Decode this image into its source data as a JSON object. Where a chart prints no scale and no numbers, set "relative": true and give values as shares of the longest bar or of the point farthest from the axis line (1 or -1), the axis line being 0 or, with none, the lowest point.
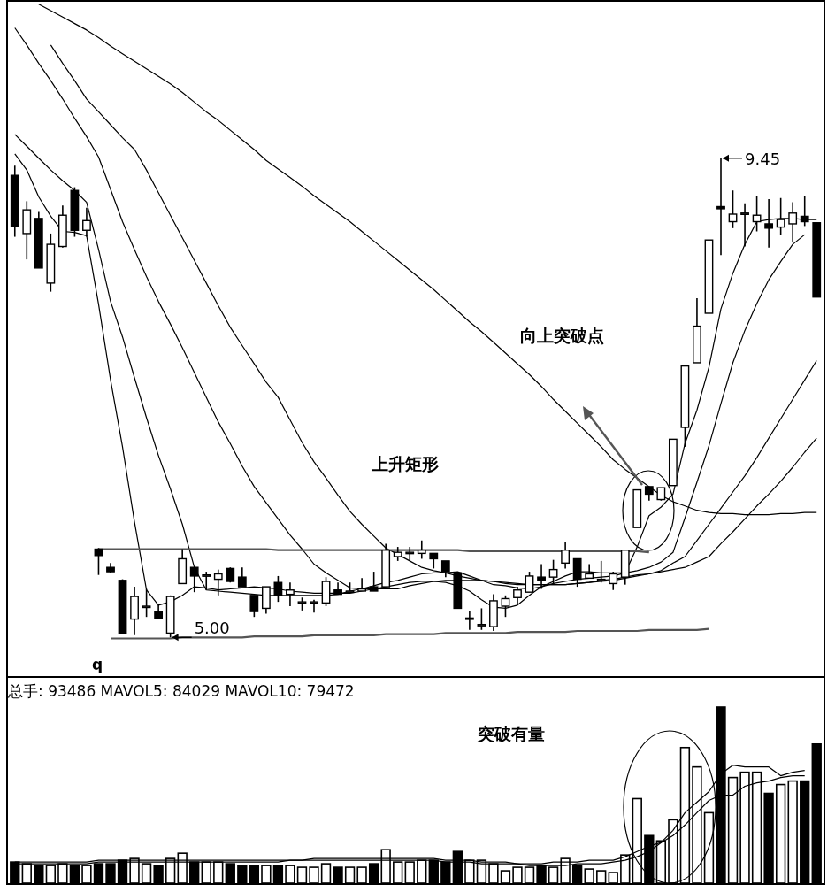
{
  "chart_data": [
    {
      "type": "candlestick",
      "categories": [
        null,
        null,
        null,
        null,
        null,
        null,
        null,
        null,
        null,
        null,
        null,
        null,
        null,
        null,
        null,
        null,
        null,
        null,
        null,
        null,
        null,
        null,
        null,
        null,
        null,
        null,
        null,
        null,
        null,
        null,
        null,
        null,
        null,
        null,
        null,
        null,
        null,
        null,
        null,
        null,
        null,
        null,
        null,
        null,
        null,
        null,
        null,
        null,
        null,
        null,
        null,
        null,
        null,
        null,
        null,
        null,
        null,
        null,
        null,
        null,
        null,
        null,
        null,
        null,
        null,
        null,
        null,
        null
      ],
      "ohlc": [
        [
          9.29,
          9.38,
          8.72,
          8.82
        ],
        [
          8.75,
          9.05,
          8.51,
          8.97
        ],
        [
          8.89,
          8.95,
          8.43,
          8.43
        ],
        [
          8.29,
          8.75,
          8.21,
          8.65
        ],
        [
          8.63,
          9.01,
          8.62,
          8.92
        ],
        [
          9.15,
          9.18,
          8.72,
          8.78
        ],
        [
          8.78,
          8.99,
          8.72,
          8.87
        ],
        [
          5.82,
          5.83,
          5.58,
          5.76
        ],
        [
          5.65,
          5.69,
          5.6,
          5.61
        ],
        [
          5.53,
          5.54,
          5.03,
          5.04
        ],
        [
          5.17,
          5.47,
          5.02,
          5.38
        ],
        [
          5.28,
          5.45,
          5.19,
          5.29
        ],
        [
          5.24,
          5.3,
          5.17,
          5.18
        ],
        [
          5.04,
          5.39,
          5.0,
          5.38
        ],
        [
          5.5,
          5.82,
          5.5,
          5.73
        ],
        [
          5.65,
          5.65,
          5.42,
          5.57
        ],
        [
          5.57,
          5.61,
          5.44,
          5.58
        ],
        [
          5.54,
          5.63,
          5.39,
          5.59
        ],
        [
          5.64,
          5.65,
          5.51,
          5.52
        ],
        [
          5.56,
          5.65,
          5.47,
          5.47
        ],
        [
          5.39,
          5.39,
          5.19,
          5.24
        ],
        [
          5.27,
          5.47,
          5.22,
          5.47
        ],
        [
          5.51,
          5.57,
          5.33,
          5.39
        ],
        [
          5.4,
          5.51,
          5.29,
          5.44
        ],
        [
          5.32,
          5.37,
          5.25,
          5.33
        ],
        [
          5.32,
          5.35,
          5.23,
          5.33
        ],
        [
          5.32,
          5.56,
          5.29,
          5.52
        ],
        [
          5.44,
          5.51,
          5.4,
          5.4
        ],
        [
          5.42,
          5.51,
          5.42,
          5.43
        ],
        [
          5.43,
          5.55,
          5.43,
          5.45
        ],
        [
          5.47,
          5.61,
          5.43,
          5.43
        ],
        [
          5.47,
          5.87,
          5.47,
          5.81
        ],
        [
          5.75,
          5.84,
          5.71,
          5.79
        ],
        [
          5.78,
          5.84,
          5.71,
          5.79
        ],
        [
          5.78,
          5.9,
          5.73,
          5.81
        ],
        [
          5.78,
          5.78,
          5.64,
          5.73
        ],
        [
          5.71,
          5.71,
          5.56,
          5.61
        ],
        [
          5.6,
          5.6,
          5.27,
          5.27
        ],
        [
          5.17,
          5.24,
          5.07,
          5.18
        ],
        [
          5.11,
          5.27,
          5.07,
          5.12
        ],
        [
          5.1,
          5.4,
          5.06,
          5.34
        ],
        [
          5.29,
          5.39,
          5.19,
          5.36
        ],
        [
          5.37,
          5.47,
          5.31,
          5.44
        ],
        [
          5.42,
          5.61,
          5.42,
          5.57
        ],
        [
          5.56,
          5.68,
          5.45,
          5.53
        ],
        [
          5.56,
          5.72,
          5.49,
          5.63
        ],
        [
          5.69,
          5.89,
          5.64,
          5.81
        ],
        [
          5.73,
          5.73,
          5.47,
          5.54
        ],
        [
          5.55,
          5.68,
          5.55,
          5.59
        ],
        [
          5.53,
          5.71,
          5.51,
          5.54
        ],
        [
          5.5,
          5.61,
          5.44,
          5.59
        ],
        [
          5.56,
          5.81,
          5.49,
          5.81
        ],
        [
          6.02,
          6.37,
          6.02,
          6.37
        ],
        [
          6.4,
          6.4,
          6.27,
          6.33
        ],
        [
          6.28,
          6.39,
          6.27,
          6.39
        ],
        [
          6.41,
          6.84,
          6.41,
          6.84
        ],
        [
          6.95,
          7.52,
          6.77,
          7.52
        ],
        [
          7.55,
          8.15,
          7.55,
          7.89
        ],
        [
          8.01,
          8.69,
          8.01,
          8.69
        ],
        [
          9.0,
          9.45,
          8.55,
          8.98
        ],
        [
          8.86,
          9.15,
          8.8,
          8.93
        ],
        [
          8.94,
          9.03,
          8.63,
          8.94
        ],
        [
          8.86,
          9.1,
          8.77,
          8.92
        ],
        [
          8.84,
          9.07,
          8.62,
          8.8
        ],
        [
          8.81,
          9.08,
          8.74,
          8.88
        ],
        [
          8.84,
          9.04,
          8.67,
          8.94
        ],
        [
          8.91,
          9.1,
          8.82,
          8.86
        ],
        [
          8.85,
          8.85,
          8.16,
          8.16
        ]
      ],
      "series": [
        {
          "type": "line",
          "color": "#000000",
          "values": [
            9.49,
            9.34,
            9.09,
            8.91,
            8.77,
            8.76,
            8.73,
            8.09,
            7.39,
            6.77,
            6.07,
            5.44,
            5.3,
            5.33,
            5.39,
            5.47,
            5.46,
            5.44,
            5.45,
            5.46,
            5.47,
            5.46,
            5.45,
            5.43,
            5.42,
            5.41,
            5.41,
            5.41,
            5.41,
            5.43,
            5.45,
            5.47,
            5.49,
            5.51,
            5.52,
            5.52,
            5.51,
            5.48,
            5.43,
            5.35,
            5.28,
            5.27,
            5.3,
            5.39,
            5.47,
            5.52,
            5.57,
            5.61,
            5.61,
            5.6,
            5.6,
            5.6,
            5.84,
            6.13,
            6.21,
            6.33,
            6.8,
            7.11,
            7.51,
            8.05,
            8.38,
            8.65,
            8.86,
            8.88,
            8.89,
            8.89,
            8.88,
            8.88
          ]
        },
        {
          "type": "line",
          "color": "#000000",
          "values": [
            9.67,
            9.56,
            9.45,
            9.34,
            9.24,
            9.15,
            9.04,
            8.6,
            8.12,
            7.79,
            7.41,
            7.04,
            6.69,
            6.38,
            6.05,
            5.65,
            5.44,
            5.43,
            5.42,
            5.41,
            5.4,
            5.39,
            5.39,
            5.39,
            5.39,
            5.39,
            5.39,
            5.4,
            5.43,
            5.45,
            5.48,
            5.51,
            5.53,
            5.56,
            5.59,
            5.6,
            5.6,
            5.61,
            5.57,
            5.53,
            5.49,
            5.48,
            5.46,
            5.45,
            5.47,
            5.5,
            5.52,
            5.54,
            5.55,
            5.56,
            5.57,
            5.6,
            5.62,
            5.65,
            5.7,
            5.79,
            6.11,
            6.44,
            6.78,
            7.17,
            7.55,
            7.85,
            8.1,
            8.32,
            8.49,
            8.65,
            8.74,
            null
          ]
        },
        {
          "type": "line",
          "color": "#000000",
          "values": [
            10.66,
            10.5,
            10.33,
            10.17,
            10.0,
            9.82,
            9.65,
            9.46,
            9.16,
            8.86,
            8.6,
            8.35,
            8.12,
            7.91,
            7.69,
            7.46,
            7.23,
            7.0,
            6.8,
            6.59,
            6.4,
            6.25,
            6.1,
            5.95,
            5.82,
            5.68,
            5.6,
            5.53,
            5.46,
            5.45,
            5.45,
            5.45,
            5.45,
            5.48,
            5.5,
            5.52,
            5.53,
            5.53,
            5.53,
            5.53,
            5.52,
            5.51,
            5.5,
            5.49,
            5.49,
            5.49,
            5.49,
            5.5,
            5.51,
            5.52,
            5.53,
            5.55,
            5.57,
            5.59,
            5.62,
            5.69,
            5.75,
            5.9,
            6.05,
            6.2,
            6.35,
            6.5,
            6.67,
            6.85,
            7.03,
            7.21,
            7.39,
            7.57
          ]
        },
        {
          "type": "line",
          "color": "#000000",
          "values": [
            null,
            null,
            null,
            10.5,
            10.33,
            10.17,
            10.0,
            9.88,
            9.76,
            9.64,
            9.53,
            9.34,
            9.13,
            8.92,
            8.71,
            8.5,
            8.29,
            8.08,
            7.88,
            7.71,
            7.54,
            7.37,
            7.23,
            7.02,
            6.81,
            6.63,
            6.48,
            6.32,
            6.17,
            6.05,
            5.94,
            5.83,
            5.77,
            5.71,
            5.65,
            5.62,
            5.6,
            5.57,
            5.55,
            5.53,
            5.52,
            5.5,
            5.49,
            5.49,
            5.49,
            5.49,
            5.49,
            5.5,
            5.51,
            5.53,
            5.54,
            5.56,
            5.58,
            5.59,
            5.61,
            5.63,
            5.65,
            5.7,
            5.75,
            5.87,
            5.98,
            6.1,
            6.22,
            6.33,
            6.45,
            6.58,
            6.72,
            6.85
          ]
        },
        {
          "type": "line",
          "color": "#000000",
          "values": [
            null,
            null,
            10.88,
            10.82,
            10.76,
            10.7,
            10.64,
            10.57,
            10.49,
            10.42,
            10.35,
            10.28,
            10.21,
            10.14,
            10.06,
            9.97,
            9.88,
            9.8,
            9.71,
            9.62,
            9.53,
            9.43,
            9.35,
            9.27,
            9.19,
            9.1,
            9.02,
            8.94,
            8.86,
            8.77,
            8.68,
            8.59,
            8.5,
            8.41,
            8.32,
            8.23,
            8.13,
            8.03,
            7.93,
            7.84,
            7.74,
            7.64,
            7.54,
            7.44,
            7.33,
            7.21,
            7.1,
            6.99,
            6.88,
            6.77,
            6.65,
            6.56,
            6.48,
            6.4,
            6.32,
            6.26,
            6.22,
            6.18,
            6.16,
            6.15,
            6.15,
            6.14,
            6.14,
            6.14,
            6.15,
            6.15,
            6.16,
            6.16
          ]
        },
        {
          "type": "line",
          "color": "#555555",
          "values": [
            null,
            null,
            null,
            null,
            null,
            null,
            null,
            5.82,
            5.82,
            5.82,
            5.82,
            5.82,
            5.82,
            5.82,
            5.82,
            5.82,
            5.82,
            5.82,
            5.82,
            5.82,
            5.82,
            5.82,
            5.81,
            5.81,
            5.81,
            5.81,
            5.81,
            5.81,
            5.81,
            5.81,
            5.81,
            5.81,
            5.81,
            5.81,
            5.81,
            5.81,
            5.81,
            5.81,
            5.8,
            5.8,
            5.8,
            5.8,
            5.8,
            5.8,
            5.8,
            5.8,
            5.8,
            5.8,
            5.8,
            5.8,
            5.8,
            5.8,
            5.8,
            5.79,
            null,
            null,
            null,
            null,
            null,
            null,
            null,
            null,
            null,
            null,
            null,
            null,
            null,
            null
          ]
        },
        {
          "type": "line",
          "color": "#555555",
          "values": [
            null,
            null,
            null,
            null,
            null,
            null,
            null,
            null,
            4.99,
            4.99,
            4.99,
            4.99,
            4.99,
            4.99,
            5.0,
            5.0,
            5.0,
            5.0,
            5.0,
            5.0,
            5.01,
            5.01,
            5.01,
            5.01,
            5.01,
            5.02,
            5.02,
            5.02,
            5.02,
            5.02,
            5.02,
            5.03,
            5.03,
            5.03,
            5.03,
            5.03,
            5.04,
            5.04,
            5.04,
            5.04,
            5.04,
            5.04,
            5.05,
            5.05,
            5.05,
            5.05,
            5.05,
            5.06,
            5.06,
            5.06,
            5.06,
            5.06,
            5.06,
            5.07,
            5.07,
            5.07,
            5.07,
            5.07,
            5.08,
            null,
            null,
            null,
            null,
            null,
            null,
            null,
            null,
            null
          ]
        }
      ],
      "annotations": [
        "上升矩形",
        "向上突破点",
        "q",
        "9.45",
        "5.00"
      ]
    },
    {
      "type": "bar",
      "relative": true,
      "title": "总手: 93486 MAVOL5: 84029 MAVOL10: 79472",
      "categories": [
        null,
        null,
        null,
        null,
        null,
        null,
        null,
        null,
        null,
        null,
        null,
        null,
        null,
        null,
        null,
        null,
        null,
        null,
        null,
        null,
        null,
        null,
        null,
        null,
        null,
        null,
        null,
        null,
        null,
        null,
        null,
        null,
        null,
        null,
        null,
        null,
        null,
        null,
        null,
        null,
        null,
        null,
        null,
        null,
        null,
        null,
        null,
        null,
        null,
        null,
        null,
        null,
        null,
        null,
        null,
        null,
        null,
        null,
        null,
        null,
        null,
        null,
        null,
        null,
        null,
        null,
        null,
        null
      ],
      "values": [
        0.12,
        0.11,
        0.1,
        0.1,
        0.11,
        0.1,
        0.1,
        0.11,
        0.11,
        0.13,
        0.14,
        0.11,
        0.1,
        0.14,
        0.17,
        0.12,
        0.12,
        0.12,
        0.11,
        0.1,
        0.1,
        0.1,
        0.1,
        0.1,
        0.09,
        0.09,
        0.11,
        0.09,
        0.09,
        0.09,
        0.11,
        0.19,
        0.12,
        0.12,
        0.13,
        0.13,
        0.12,
        0.18,
        0.13,
        0.13,
        0.11,
        0.07,
        0.09,
        0.09,
        0.1,
        0.09,
        0.14,
        0.1,
        0.08,
        0.07,
        0.06,
        0.16,
        0.48,
        0.27,
        0.24,
        0.36,
        0.77,
        0.66,
        0.4,
        1.0,
        0.6,
        0.63,
        0.63,
        0.51,
        0.56,
        0.58,
        0.58,
        0.79
      ],
      "colors": [
        "#000000",
        "#ffffff",
        "#000000",
        "#ffffff",
        "#ffffff",
        "#000000",
        "#ffffff",
        "#000000",
        "#000000",
        "#000000",
        "#ffffff",
        "#ffffff",
        "#000000",
        "#ffffff",
        "#ffffff",
        "#000000",
        "#ffffff",
        "#ffffff",
        "#000000",
        "#000000",
        "#000000",
        "#ffffff",
        "#000000",
        "#ffffff",
        "#ffffff",
        "#ffffff",
        "#ffffff",
        "#000000",
        "#ffffff",
        "#ffffff",
        "#000000",
        "#ffffff",
        "#ffffff",
        "#ffffff",
        "#ffffff",
        "#000000",
        "#000000",
        "#000000",
        "#ffffff",
        "#ffffff",
        "#ffffff",
        "#ffffff",
        "#ffffff",
        "#ffffff",
        "#000000",
        "#ffffff",
        "#ffffff",
        "#000000",
        "#ffffff",
        "#ffffff",
        "#ffffff",
        "#ffffff",
        "#ffffff",
        "#000000",
        "#ffffff",
        "#ffffff",
        "#ffffff",
        "#ffffff",
        "#ffffff",
        "#000000",
        "#ffffff",
        "#ffffff",
        "#ffffff",
        "#000000",
        "#ffffff",
        "#ffffff",
        "#000000",
        "#000000"
      ],
      "series": [
        {
          "type": "line",
          "color": "#000000",
          "values": [
            0.12,
            0.12,
            0.12,
            0.12,
            0.12,
            0.12,
            0.12,
            0.13,
            0.13,
            0.13,
            0.13,
            0.13,
            0.13,
            0.13,
            0.13,
            0.13,
            0.13,
            0.13,
            0.13,
            0.13,
            0.13,
            0.13,
            0.13,
            0.13,
            0.13,
            0.14,
            0.14,
            0.14,
            0.14,
            0.14,
            0.14,
            0.14,
            0.14,
            0.14,
            0.14,
            0.14,
            0.13,
            0.13,
            0.13,
            0.12,
            0.12,
            0.12,
            0.11,
            0.11,
            0.11,
            0.12,
            0.12,
            0.12,
            0.13,
            0.13,
            0.13,
            0.15,
            0.18,
            0.21,
            0.23,
            0.3,
            0.4,
            0.46,
            0.52,
            0.62,
            0.67,
            0.66,
            0.66,
            0.66,
            0.61,
            0.63,
            0.64,
            null
          ]
        },
        {
          "type": "line",
          "color": "#000000",
          "values": [
            0.11,
            0.11,
            0.11,
            0.11,
            0.11,
            0.11,
            0.11,
            0.12,
            0.12,
            0.12,
            0.12,
            0.12,
            0.12,
            0.12,
            0.12,
            0.12,
            0.12,
            0.12,
            0.12,
            0.12,
            0.12,
            0.12,
            0.12,
            0.13,
            0.13,
            0.13,
            0.13,
            0.13,
            0.13,
            0.13,
            0.13,
            0.13,
            0.13,
            0.13,
            0.13,
            0.13,
            0.12,
            0.12,
            0.12,
            0.11,
            0.11,
            0.11,
            0.11,
            0.1,
            0.1,
            0.1,
            0.1,
            0.11,
            0.11,
            0.11,
            0.12,
            0.13,
            0.15,
            0.18,
            0.23,
            0.27,
            0.33,
            0.4,
            0.47,
            0.5,
            0.5,
            0.55,
            0.57,
            0.58,
            0.6,
            0.61,
            0.61,
            null
          ]
        }
      ],
      "annotations": [
        "突破有量"
      ]
    }
  ]
}
